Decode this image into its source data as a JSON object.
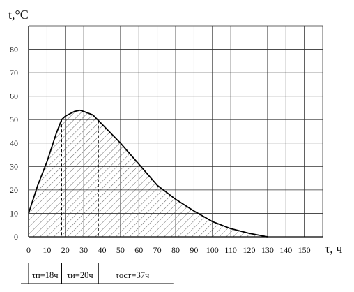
{
  "chart_data": {
    "type": "area",
    "ylabel": "t,°C",
    "xlabel": "τ, ч",
    "xlim": [
      0,
      160
    ],
    "ylim": [
      0,
      90
    ],
    "x_ticks": [
      0,
      10,
      20,
      30,
      40,
      50,
      60,
      70,
      80,
      90,
      100,
      110,
      120,
      130,
      140,
      150
    ],
    "y_ticks": [
      0,
      10,
      20,
      30,
      40,
      50,
      60,
      70,
      80
    ],
    "grid": true,
    "series": [
      {
        "x": [
          0,
          5,
          10,
          15,
          18,
          20,
          25,
          28,
          30,
          35,
          40,
          50,
          60,
          70,
          75,
          80,
          90,
          100,
          110,
          120,
          130
        ],
        "y": [
          10,
          22,
          32,
          44,
          50,
          51.5,
          53.5,
          54,
          53.5,
          52,
          48,
          40,
          31,
          22,
          19,
          16,
          11,
          6.5,
          3.5,
          1.5,
          0
        ]
      }
    ],
    "hatch_above": 10,
    "phase_boundaries": [
      18,
      38
    ],
    "phases": [
      {
        "label": "τп=18ч",
        "start": 0,
        "end": 18
      },
      {
        "label": "τи=20ч",
        "start": 18,
        "end": 38
      },
      {
        "label": "τост=37ч",
        "start": 38,
        "end": 75
      }
    ]
  }
}
